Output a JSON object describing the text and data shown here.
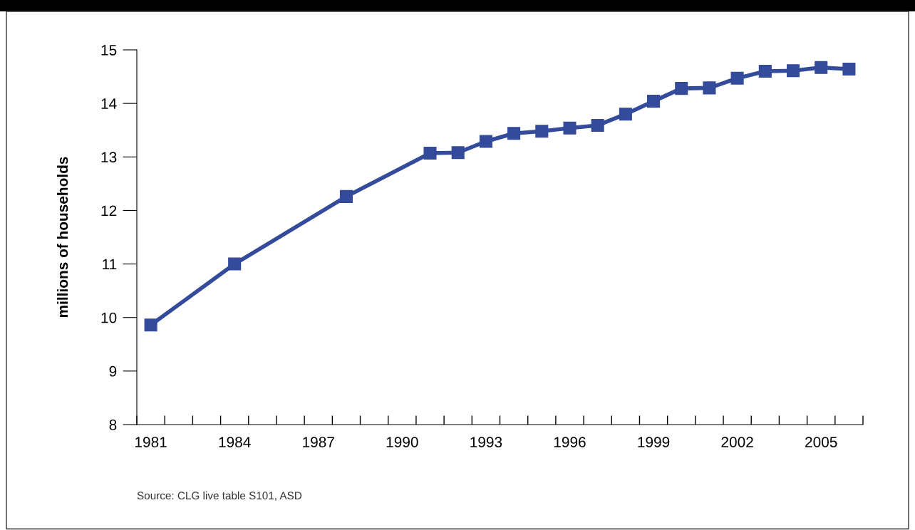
{
  "chart_data": {
    "type": "line",
    "ylabel": "millions of households",
    "color": "#334b9a",
    "marker": "square",
    "line_style": "solid",
    "grid": false,
    "legend": false,
    "x": [
      1981,
      1984,
      1988,
      1991,
      1992,
      1993,
      1994,
      1995,
      1996,
      1997,
      1998,
      1999,
      2000,
      2001,
      2002,
      2003,
      2004,
      2005,
      2006
    ],
    "values": [
      9.86,
      11.0,
      12.26,
      13.07,
      13.08,
      13.29,
      13.44,
      13.48,
      13.54,
      13.59,
      13.8,
      14.04,
      14.28,
      14.29,
      14.47,
      14.6,
      14.61,
      14.67,
      14.64
    ],
    "xlim": [
      1980.5,
      2006.5
    ],
    "xticks": [
      {
        "value": 1980.5,
        "label": null
      },
      1981,
      {
        "value": 1981.5,
        "label": null
      },
      {
        "value": 1982.5,
        "label": null
      },
      {
        "value": 1983.5,
        "label": null
      },
      1984,
      {
        "value": 1984.5,
        "label": null
      },
      {
        "value": 1985.5,
        "label": null
      },
      {
        "value": 1986.5,
        "label": null
      },
      1987,
      {
        "value": 1987.5,
        "label": null
      },
      {
        "value": 1988.5,
        "label": null
      },
      {
        "value": 1989.5,
        "label": null
      },
      1990,
      {
        "value": 1990.5,
        "label": null
      },
      {
        "value": 1991.5,
        "label": null
      },
      {
        "value": 1992.5,
        "label": null
      },
      1993,
      {
        "value": 1993.5,
        "label": null
      },
      {
        "value": 1994.5,
        "label": null
      },
      {
        "value": 1995.5,
        "label": null
      },
      1996,
      {
        "value": 1996.5,
        "label": null
      },
      {
        "value": 1997.5,
        "label": null
      },
      {
        "value": 1998.5,
        "label": null
      },
      1999,
      {
        "value": 1999.5,
        "label": null
      },
      {
        "value": 2000.5,
        "label": null
      },
      {
        "value": 2001.5,
        "label": null
      },
      2002,
      {
        "value": 2002.5,
        "label": null
      },
      {
        "value": 2003.5,
        "label": null
      },
      {
        "value": 2004.5,
        "label": null
      },
      2005,
      {
        "value": 2005.5,
        "label": null
      },
      {
        "value": 2006.5,
        "label": null
      }
    ],
    "ylim": [
      8,
      15
    ],
    "yticks": [
      8,
      9,
      10,
      11,
      12,
      13,
      14,
      15
    ],
    "annotations": [
      "Source: CLG live table S101, ASD"
    ]
  }
}
